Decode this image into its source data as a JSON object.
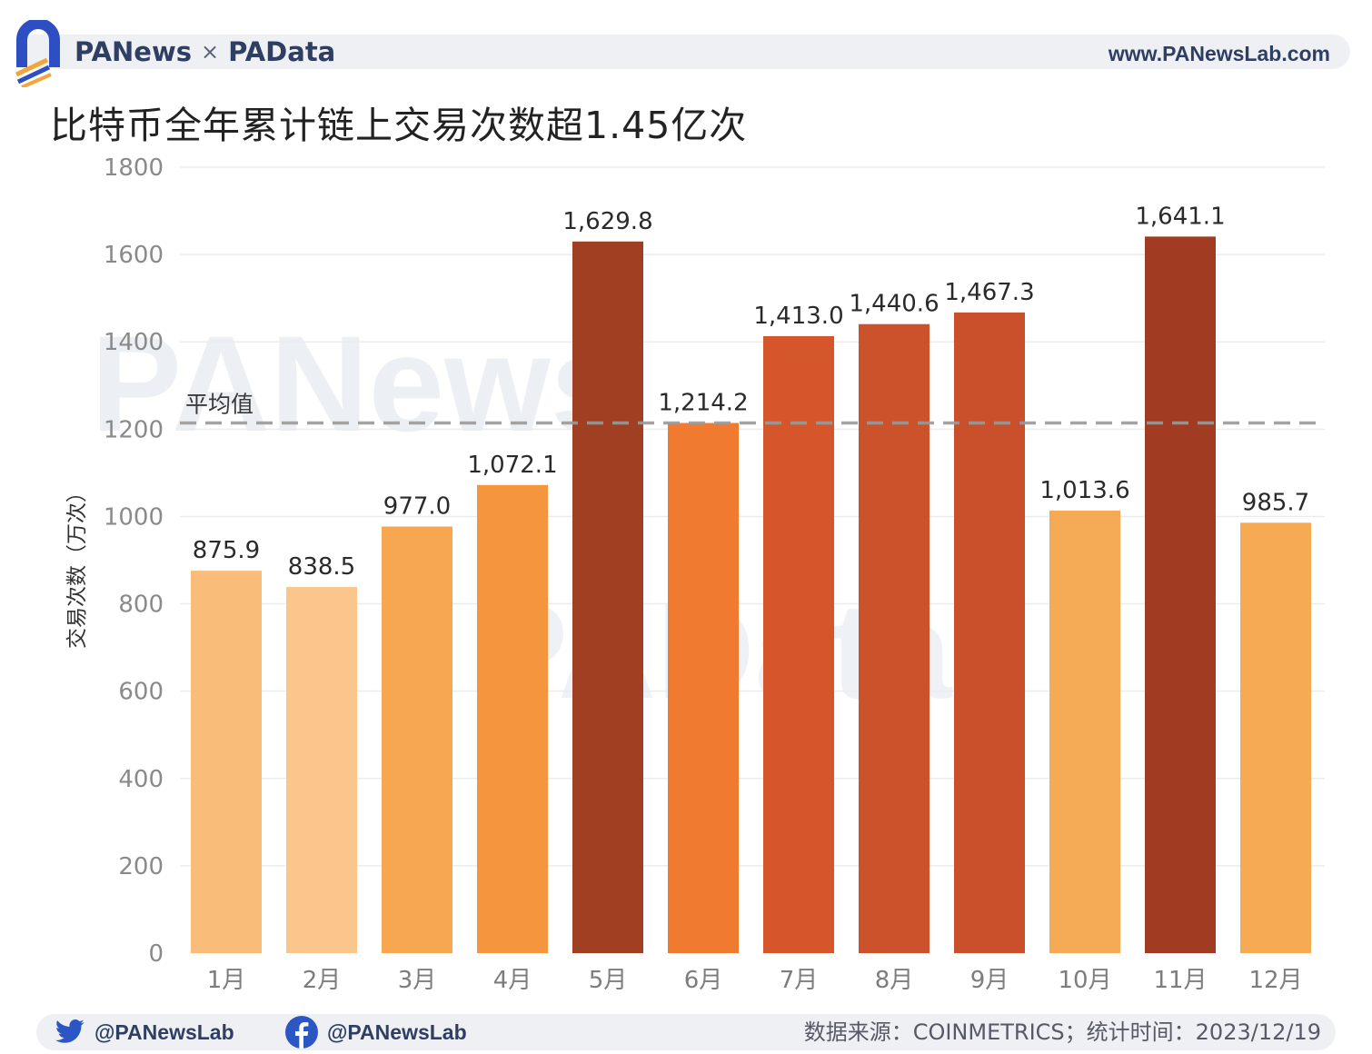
{
  "brand": {
    "name1": "PANews",
    "separator": "×",
    "name2": "PAData",
    "url": "www.PANewsLab.com"
  },
  "chart_data": {
    "type": "bar",
    "title": "比特币全年累计链上交易次数超1.45亿次",
    "ylabel": "交易次数（万次）",
    "xlabel": "",
    "categories": [
      "1月",
      "2月",
      "3月",
      "4月",
      "5月",
      "6月",
      "7月",
      "8月",
      "9月",
      "10月",
      "11月",
      "12月"
    ],
    "values": [
      875.9,
      838.5,
      977.0,
      1072.1,
      1629.8,
      1214.2,
      1413.0,
      1440.6,
      1467.3,
      1013.6,
      1641.1,
      985.7
    ],
    "value_labels": [
      "875.9",
      "838.5",
      "977.0",
      "1,072.1",
      "1,629.8",
      "1,214.2",
      "1,413.0",
      "1,440.6",
      "1,467.3",
      "1,013.6",
      "1,641.1",
      "985.7"
    ],
    "bar_colors": [
      "#f9bd79",
      "#fac68b",
      "#f7a752",
      "#f5953e",
      "#a13f22",
      "#f07a30",
      "#d4562a",
      "#cb522a",
      "#c9502a",
      "#f5ab55",
      "#a13c22",
      "#f5aa53"
    ],
    "ylim": [
      0,
      1800
    ],
    "yticks": [
      0,
      200,
      400,
      600,
      800,
      1000,
      1200,
      1400,
      1600,
      1800
    ],
    "average": {
      "label": "平均值",
      "value": 1214.2
    },
    "grid": true,
    "legend": "none"
  },
  "footer": {
    "twitter_handle": "@PANewsLab",
    "facebook_handle": "@PANewsLab",
    "source": "数据来源：COINMETRICS；统计时间：2023/12/19"
  },
  "watermarks": [
    "PANews",
    "PAData"
  ],
  "icons": [
    "logo-icon",
    "twitter-icon",
    "facebook-icon"
  ]
}
